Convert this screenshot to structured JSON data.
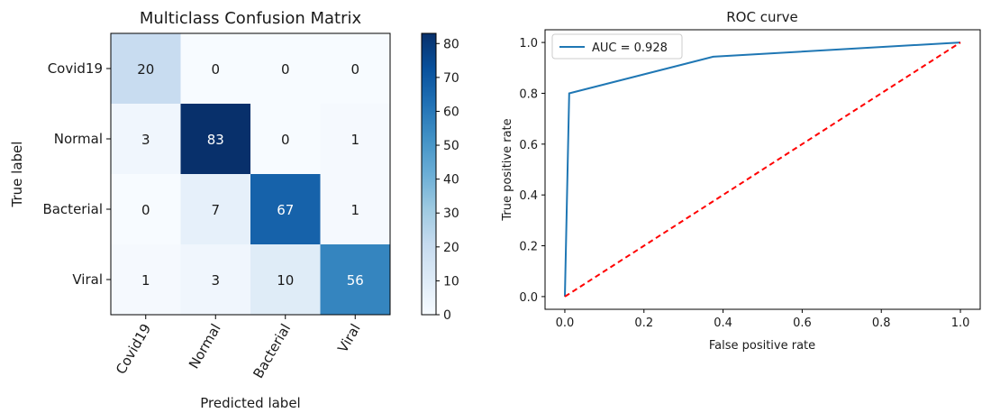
{
  "chart_data": [
    {
      "type": "heatmap",
      "title": "Multiclass Confusion Matrix",
      "xlabel": "Predicted label",
      "ylabel": "True label",
      "x_categories": [
        "Covid19",
        "Normal",
        "Bacterial",
        "Viral"
      ],
      "y_categories": [
        "Covid19",
        "Normal",
        "Bacterial",
        "Viral"
      ],
      "values": [
        [
          20,
          0,
          0,
          0
        ],
        [
          3,
          83,
          0,
          1
        ],
        [
          0,
          7,
          67,
          1
        ],
        [
          1,
          3,
          10,
          56
        ]
      ],
      "colorbar": {
        "min": 0,
        "max": 83,
        "ticks": [
          0,
          10,
          20,
          30,
          40,
          50,
          60,
          70,
          80
        ],
        "colormap": "Blues"
      }
    },
    {
      "type": "line",
      "title": "ROC curve",
      "xlabel": "False positive rate",
      "ylabel": "True positive rate",
      "xlim": [
        -0.05,
        1.05
      ],
      "ylim": [
        -0.05,
        1.05
      ],
      "xticks": [
        0.0,
        0.2,
        0.4,
        0.6,
        0.8,
        1.0
      ],
      "yticks": [
        0.0,
        0.2,
        0.4,
        0.6,
        0.8,
        1.0
      ],
      "legend_position": "top-left",
      "series": [
        {
          "name": "AUC = 0.928",
          "style": "solid",
          "color": "#1f77b4",
          "x": [
            0.0,
            0.011,
            0.375,
            1.0
          ],
          "y": [
            0.0,
            0.8,
            0.944,
            1.0
          ]
        },
        {
          "style": "dashed",
          "color": "#ff0000",
          "x": [
            0.0,
            1.0
          ],
          "y": [
            0.0,
            1.0
          ]
        }
      ]
    }
  ]
}
